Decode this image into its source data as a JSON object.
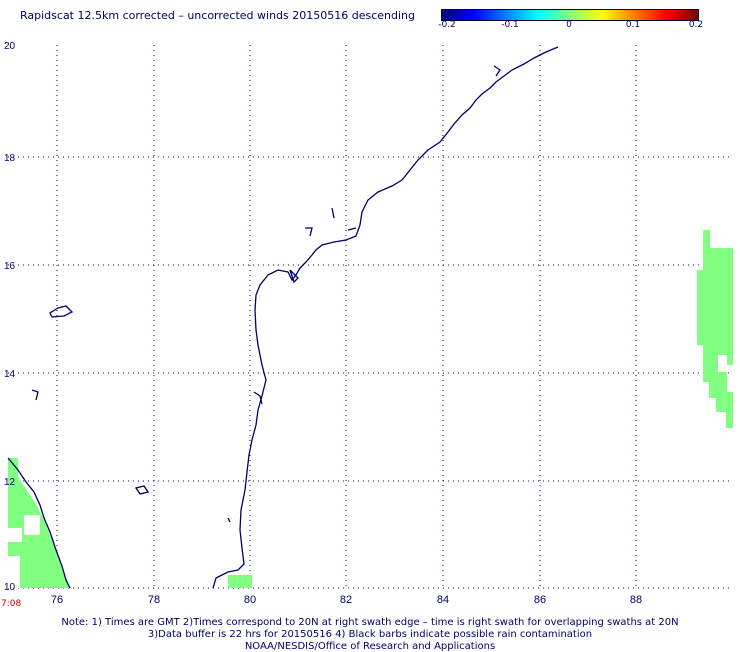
{
  "title": "Rapidscat 12.5km corrected – uncorrected winds 20150516 descending",
  "colorbar": {
    "ticks": [
      "-0.2",
      "-0.1",
      "0",
      "0.1",
      "0.2"
    ],
    "colors": [
      "#00007f",
      "#0000ff",
      "#007fff",
      "#00ffff",
      "#7fff7f",
      "#ffff00",
      "#ff7f00",
      "#ff0000",
      "#7f0000"
    ]
  },
  "map": {
    "lon_ticks": [
      "76",
      "78",
      "80",
      "82",
      "84",
      "86",
      "88"
    ],
    "lat_ticks": [
      "20",
      "18",
      "16",
      "14",
      "12",
      "10"
    ],
    "lon_range": [
      75,
      90
    ],
    "lat_range": [
      10,
      20
    ],
    "grid": "dotted",
    "coast_color": "#000066",
    "swath_color": "#80ff80"
  },
  "time_label": "7:08",
  "notes": [
    "Note: 1) Times are GMT 2)Times correspond to 20N at right swath edge – time is right swath for overlapping swaths at 20N",
    "3)Data buffer is 22 hrs for 20150516 4) Black barbs indicate possible rain contamination",
    "NOAA/NESDIS/Office of Research and Applications"
  ]
}
